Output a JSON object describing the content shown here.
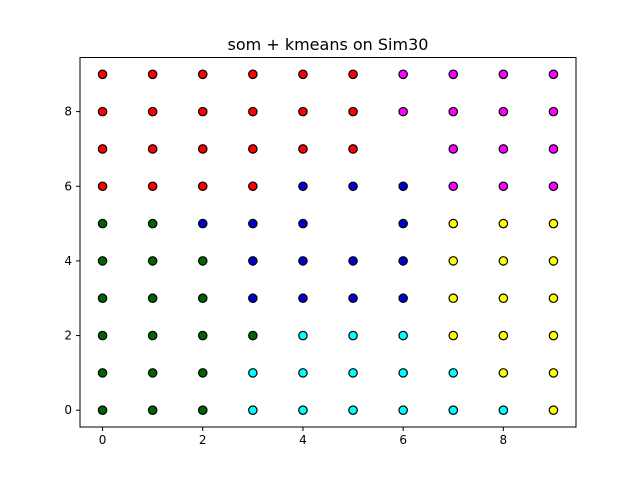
{
  "chart_data": {
    "type": "scatter",
    "title": "som + kmeans on Sim30",
    "xlabel": "",
    "ylabel": "",
    "xlim": [
      -0.45,
      9.45
    ],
    "ylim": [
      -0.45,
      9.45
    ],
    "xticks": [
      0,
      2,
      4,
      6,
      8
    ],
    "yticks": [
      0,
      2,
      4,
      6,
      8
    ],
    "grid": false,
    "marker_edge_color": "#000000",
    "colors": {
      "red": "#ff0000",
      "magenta": "#ff00ff",
      "green": "#006400",
      "blue": "#0000cd",
      "cyan": "#00ffff",
      "yellow": "#ffff00"
    },
    "grid_columns": [
      0,
      1,
      2,
      3,
      4,
      5,
      6,
      7,
      8,
      9
    ],
    "grid_rows_top_to_bottom": [
      9,
      8,
      7,
      6,
      5,
      4,
      3,
      2,
      1,
      0
    ],
    "cluster_grid": [
      "RRRRRRMMMM",
      "RRRRRRMMMM",
      "RRRRRR.MMM",
      "RRRRBBBMMM",
      "GGBBB.BYYY",
      "GGGBBBBYYY",
      "GGGBBBBYYY",
      "GGGGCCCYYY",
      "GGGCCCCCYY",
      "GGGCCCCCCY"
    ],
    "cluster_key": {
      "R": "red",
      "M": "magenta",
      "G": "green",
      "B": "blue",
      "C": "cyan",
      "Y": "yellow"
    }
  }
}
